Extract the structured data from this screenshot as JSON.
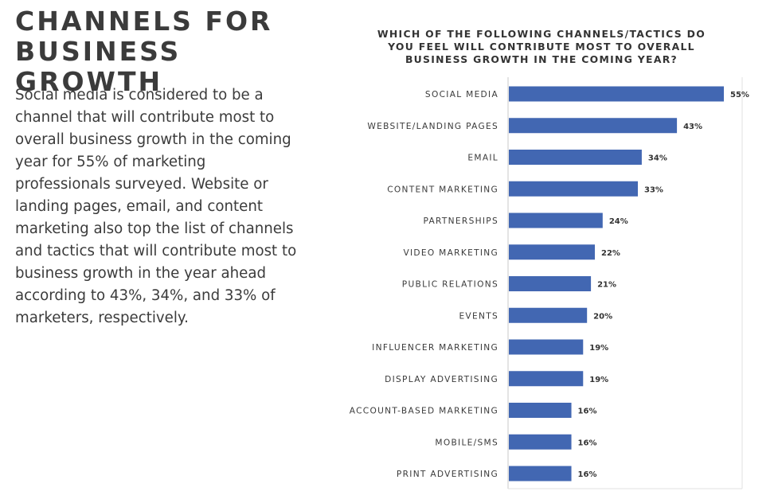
{
  "headline": {
    "line1": "CHANNELS FOR",
    "line2": "BUSINESS GROWTH"
  },
  "body_text": "Social media is considered to be a channel that will contribute most to overall business growth in the coming year for 55% of marketing professionals surveyed. Website or landing pages, email, and content marketing also top the list of channels and tactics that will contribute most to business growth in the year ahead according to 43%, 34%, and 33% of marketers, respectively.",
  "chart_title": "WHICH OF THE FOLLOWING CHANNELS/TACTICS DO YOU FEEL WILL CONTRIBUTE MOST TO OVERALL BUSINESS GROWTH IN THE COMING YEAR?",
  "chart_data": {
    "type": "bar",
    "orientation": "horizontal",
    "title": "WHICH OF THE FOLLOWING CHANNELS/TACTICS DO YOU FEEL WILL CONTRIBUTE MOST TO OVERALL BUSINESS GROWTH IN THE COMING YEAR?",
    "categories": [
      "SOCIAL MEDIA",
      "WEBSITE/LANDING PAGES",
      "EMAIL",
      "CONTENT MARKETING",
      "PARTNERSHIPS",
      "VIDEO MARKETING",
      "PUBLIC RELATIONS",
      "EVENTS",
      "INFLUENCER MARKETING",
      "DISPLAY ADVERTISING",
      "ACCOUNT-BASED MARKETING",
      "MOBILE/SMS",
      "PRINT ADVERTISING"
    ],
    "values": [
      55,
      43,
      34,
      33,
      24,
      22,
      21,
      20,
      19,
      19,
      16,
      16,
      16
    ],
    "value_labels": [
      "55%",
      "43%",
      "34%",
      "33%",
      "24%",
      "22%",
      "21%",
      "20%",
      "19%",
      "19%",
      "16%",
      "16%",
      "16%"
    ],
    "xlabel": "",
    "ylabel": "",
    "xlim": [
      0,
      60
    ],
    "grid": false,
    "legend": "none",
    "colors": {
      "bar": "#4267b2",
      "axis": "#c8c8c8"
    }
  }
}
